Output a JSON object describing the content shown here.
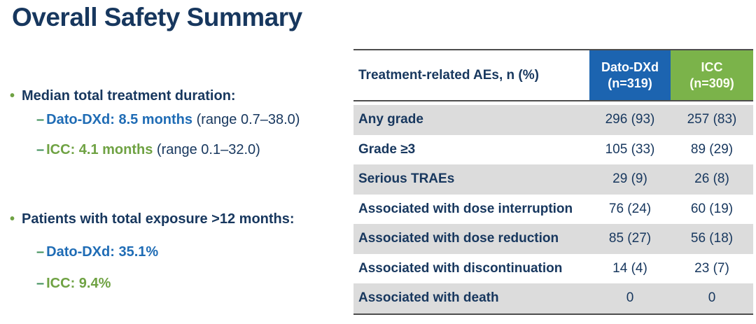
{
  "title": "Overall Safety Summary",
  "icons": {
    "bullet": "•",
    "dash": "–"
  },
  "colors": {
    "navy_text": "#17375E",
    "blue_text": "#1F6CB5",
    "green_text": "#6FA243",
    "dato_header_bg": "#1C64B0",
    "icc_header_bg": "#7BB34A",
    "row_shade": "#DCDCDC",
    "rule": "#4d4d4d"
  },
  "bullets": [
    {
      "label": "Median total treatment duration:",
      "sub": [
        {
          "highlight": "Dato-DXd: 8.5 months",
          "rest": " (range 0.7–38.0)"
        },
        {
          "highlight": "ICC: 4.1 months",
          "rest": " (range 0.1–32.0)"
        }
      ]
    },
    {
      "label": "Patients with total exposure >12 months:",
      "sub": [
        {
          "highlight": "Dato-DXd: 35.1%",
          "rest": ""
        },
        {
          "highlight": "ICC: 9.4%",
          "rest": ""
        }
      ]
    }
  ],
  "table": {
    "header": {
      "label": "Treatment-related AEs, n (%)",
      "col1_line1": "Dato-DXd",
      "col1_line2": "(n=319)",
      "col2_line1": "ICC",
      "col2_line2": "(n=309)"
    },
    "rows": [
      {
        "label": "Any grade",
        "dato": "296 (93)",
        "icc": "257 (83)"
      },
      {
        "label": "Grade ≥3",
        "dato": "105 (33)",
        "icc": "89 (29)"
      },
      {
        "label": "Serious TRAEs",
        "dato": "29 (9)",
        "icc": "26 (8)"
      },
      {
        "label": "Associated with dose interruption",
        "dato": "76 (24)",
        "icc": "60 (19)"
      },
      {
        "label": "Associated with dose reduction",
        "dato": "85 (27)",
        "icc": "56 (18)"
      },
      {
        "label": "Associated with discontinuation",
        "dato": "14 (4)",
        "icc": "23 (7)"
      },
      {
        "label": "Associated with death",
        "dato": "0",
        "icc": "0"
      }
    ]
  }
}
